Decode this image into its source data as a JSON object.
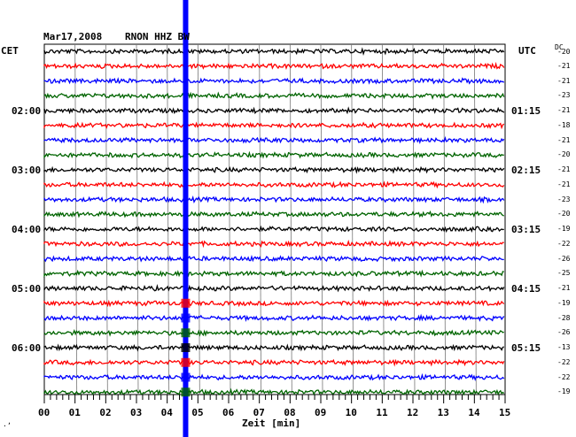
{
  "header": {
    "date": "Mar17,2008",
    "station": "RNON HHZ BW",
    "left_zone": "CET",
    "right_zone": "UTC",
    "dc_label": "DC"
  },
  "rows": [
    {
      "color": "#000000",
      "dc": "-20",
      "cet": "",
      "utc": ""
    },
    {
      "color": "#ff0000",
      "dc": "-21",
      "cet": "",
      "utc": ""
    },
    {
      "color": "#0000ff",
      "dc": "-21",
      "cet": "",
      "utc": ""
    },
    {
      "color": "#006400",
      "dc": "-23",
      "cet": "",
      "utc": ""
    },
    {
      "color": "#000000",
      "dc": "-21",
      "cet": "02:00",
      "utc": "01:15"
    },
    {
      "color": "#ff0000",
      "dc": "-18",
      "cet": "",
      "utc": ""
    },
    {
      "color": "#0000ff",
      "dc": "-21",
      "cet": "",
      "utc": ""
    },
    {
      "color": "#006400",
      "dc": "-20",
      "cet": "",
      "utc": ""
    },
    {
      "color": "#000000",
      "dc": "-21",
      "cet": "03:00",
      "utc": "02:15"
    },
    {
      "color": "#ff0000",
      "dc": "-21",
      "cet": "",
      "utc": ""
    },
    {
      "color": "#0000ff",
      "dc": "-23",
      "cet": "",
      "utc": ""
    },
    {
      "color": "#006400",
      "dc": "-20",
      "cet": "",
      "utc": ""
    },
    {
      "color": "#000000",
      "dc": "-19",
      "cet": "04:00",
      "utc": "03:15"
    },
    {
      "color": "#ff0000",
      "dc": "-22",
      "cet": "",
      "utc": ""
    },
    {
      "color": "#0000ff",
      "dc": "-26",
      "cet": "",
      "utc": ""
    },
    {
      "color": "#006400",
      "dc": "-25",
      "cet": "",
      "utc": ""
    },
    {
      "color": "#000000",
      "dc": "-21",
      "cet": "05:00",
      "utc": "04:15"
    },
    {
      "color": "#ff0000",
      "dc": "-19",
      "cet": "",
      "utc": ""
    },
    {
      "color": "#0000ff",
      "dc": "-28",
      "cet": "",
      "utc": ""
    },
    {
      "color": "#006400",
      "dc": "-26",
      "cet": "",
      "utc": ""
    },
    {
      "color": "#000000",
      "dc": "-13",
      "cet": "06:00",
      "utc": "05:15"
    },
    {
      "color": "#ff0000",
      "dc": "-22",
      "cet": "",
      "utc": ""
    },
    {
      "color": "#0000ff",
      "dc": "-22",
      "cet": "",
      "utc": ""
    },
    {
      "color": "#006400",
      "dc": "-19",
      "cet": "",
      "utc": ""
    }
  ],
  "x_axis": {
    "label": "Zeit [min]",
    "ticks": [
      "00",
      "01",
      "02",
      "03",
      "04",
      "05",
      "06",
      "07",
      "08",
      "09",
      "10",
      "11",
      "12",
      "13",
      "14",
      "15"
    ]
  },
  "marker": {
    "color": "#0000ff",
    "minute": 4.6
  },
  "corner_mark": "·ʼ"
}
